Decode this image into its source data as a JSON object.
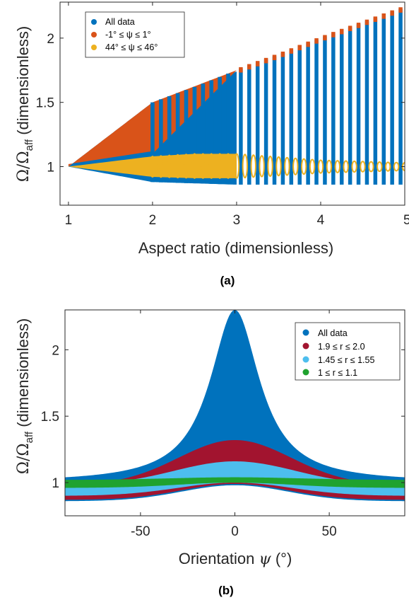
{
  "colors": {
    "all": "#0072BD",
    "orange": "#D95319",
    "yellow": "#EDB120",
    "red": "#A2142F",
    "cyan": "#4DBEEE",
    "green": "#1FA22F"
  },
  "chart_data": [
    {
      "type": "scatter",
      "caption": "(a)",
      "xlabel": "Aspect ratio (dimensionless)",
      "ylabel": {
        "main": "Ω/Ω",
        "sub": "aff",
        "rest": " (dimensionless)"
      },
      "xlim": [
        0.9,
        5.0
      ],
      "ylim": [
        0.7,
        2.28
      ],
      "xticks": [
        1,
        2,
        3,
        4,
        5
      ],
      "xticklabels": [
        "1",
        "2",
        "3",
        "4",
        "5"
      ],
      "yticks": [
        1,
        1.5,
        2
      ],
      "yticklabels": [
        "1",
        "1.5",
        "2"
      ],
      "legend_position": "top-left",
      "series": [
        {
          "name": "All data",
          "color_key": "all",
          "upper_envelope": {
            "x": [
              1,
              1.5,
              2,
              2.5,
              3,
              3.5,
              4,
              4.5,
              5
            ],
            "y": [
              1,
              1.25,
              1.5,
              1.62,
              1.75,
              1.87,
              2.0,
              2.12,
              2.24
            ]
          },
          "lower_envelope": {
            "x": [
              1,
              2,
              3,
              4,
              5
            ],
            "y": [
              1,
              0.88,
              0.86,
              0.86,
              0.86
            ]
          }
        },
        {
          "name": "-1° ≤ ψ ≤ 1°",
          "color_key": "orange",
          "upper_envelope": {
            "x": [
              1,
              2,
              3,
              4,
              5
            ],
            "y": [
              1,
              1.5,
              1.75,
              2.0,
              2.25
            ]
          },
          "lower_envelope": {
            "x": [
              1,
              2,
              3,
              4,
              5
            ],
            "y": [
              1,
              1.1,
              1.1,
              1.1,
              1.1
            ]
          }
        },
        {
          "name": "44° ≤ ψ ≤ 46°",
          "color_key": "yellow",
          "upper_envelope": {
            "x": [
              1,
              2,
              2.5,
              3,
              4,
              5
            ],
            "y": [
              1,
              1.08,
              1.1,
              1.1,
              1.05,
              1.03
            ]
          },
          "lower_envelope": {
            "x": [
              1,
              2,
              2.5,
              3,
              4,
              5
            ],
            "y": [
              1,
              0.92,
              0.91,
              0.91,
              0.95,
              0.97
            ]
          }
        }
      ]
    },
    {
      "type": "scatter",
      "caption": "(b)",
      "xlabel": {
        "main": "Orientation ",
        "symbol": "ψ",
        "rest": " (°)"
      },
      "ylabel": {
        "main": "Ω/Ω",
        "sub": "aff",
        "rest": " (dimensionless)"
      },
      "xlim": [
        -90,
        90
      ],
      "ylim": [
        0.75,
        2.3
      ],
      "xticks": [
        -50,
        0,
        50
      ],
      "xticklabels": [
        "-50",
        "0",
        "50"
      ],
      "yticks": [
        1,
        1.5,
        2
      ],
      "yticklabels": [
        "1",
        "1.5",
        "2"
      ],
      "legend_position": "top-right",
      "series": [
        {
          "name": "All data",
          "color_key": "all",
          "peak": 2.3,
          "base_upper": 1.0,
          "band_lower_center": 0.98,
          "band_lower_edge": 0.86
        },
        {
          "name": "1.9 ≤ r ≤ 2.0",
          "color_key": "red",
          "peak": 1.32,
          "base": 0.98,
          "trough_center": 0.99,
          "trough_edge": 0.87
        },
        {
          "name": "1.45 ≤ r ≤ 1.55",
          "color_key": "cyan",
          "peak": 1.16,
          "base": 0.98,
          "trough_center": 1.0,
          "trough_edge": 0.9
        },
        {
          "name": "1 ≤ r ≤ 1.1",
          "color_key": "green",
          "peak": 1.02,
          "base": 1.0,
          "trough_center": 1.0,
          "trough_edge": 0.96
        }
      ]
    }
  ]
}
